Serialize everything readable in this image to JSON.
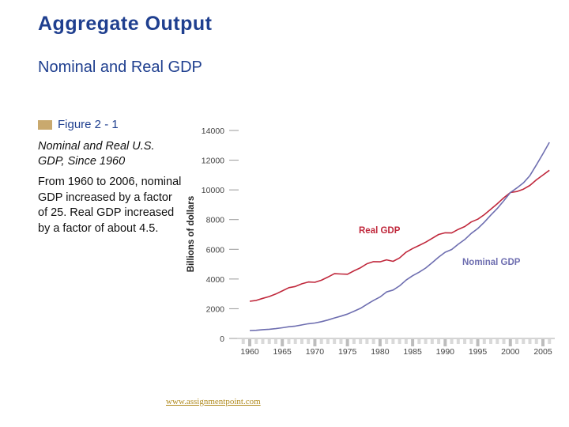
{
  "slide": {
    "title": "Aggregate Output",
    "subtitle": "Nominal and Real GDP",
    "figure_label": "Figure 2 - 1",
    "figure_caption": "Nominal and Real U.S. GDP, Since 1960",
    "figure_description": "From 1960 to 2006, nominal GDP increased by a factor of 25. Real GDP increased by a factor of about 4.5.",
    "footer": "www.assignmentpoint.com"
  },
  "colors": {
    "title": "#1f3f8f",
    "real": "#c0283c",
    "nominal": "#6e6eb0",
    "swatch": "#c9a96e"
  },
  "chart_data": {
    "type": "line",
    "title": "",
    "xlabel": "",
    "ylabel": "Billions of dollars",
    "xlim": [
      1959,
      2007
    ],
    "ylim": [
      0,
      14000
    ],
    "x_ticks": [
      1960,
      1965,
      1970,
      1975,
      1980,
      1985,
      1990,
      1995,
      2000,
      2005
    ],
    "y_ticks": [
      0,
      2000,
      4000,
      6000,
      8000,
      10000,
      12000,
      14000
    ],
    "grid": false,
    "legend": "inline labels",
    "series": [
      {
        "name": "Real GDP",
        "x": [
          1960,
          1961,
          1962,
          1963,
          1964,
          1965,
          1966,
          1967,
          1968,
          1969,
          1970,
          1971,
          1972,
          1973,
          1974,
          1975,
          1976,
          1977,
          1978,
          1979,
          1980,
          1981,
          1982,
          1983,
          1984,
          1985,
          1986,
          1987,
          1988,
          1989,
          1990,
          1991,
          1992,
          1993,
          1994,
          1995,
          1996,
          1997,
          1998,
          1999,
          2000,
          2001,
          2002,
          2003,
          2004,
          2005,
          2006
        ],
        "y": [
          2500,
          2560,
          2700,
          2820,
          2990,
          3200,
          3420,
          3500,
          3680,
          3800,
          3780,
          3920,
          4130,
          4360,
          4340,
          4320,
          4550,
          4760,
          5030,
          5170,
          5160,
          5290,
          5190,
          5420,
          5810,
          6050,
          6260,
          6480,
          6740,
          7000,
          7110,
          7100,
          7340,
          7530,
          7840,
          8030,
          8330,
          8700,
          9070,
          9470,
          9820,
          9890,
          10050,
          10300,
          10680,
          11000,
          11320
        ]
      },
      {
        "name": "Nominal GDP",
        "x": [
          1960,
          1961,
          1962,
          1963,
          1964,
          1965,
          1966,
          1967,
          1968,
          1969,
          1970,
          1971,
          1972,
          1973,
          1974,
          1975,
          1976,
          1977,
          1978,
          1979,
          1980,
          1981,
          1982,
          1983,
          1984,
          1985,
          1986,
          1987,
          1988,
          1989,
          1990,
          1991,
          1992,
          1993,
          1994,
          1995,
          1996,
          1997,
          1998,
          1999,
          2000,
          2001,
          2002,
          2003,
          2004,
          2005,
          2006
        ],
        "y": [
          530,
          550,
          590,
          620,
          660,
          720,
          790,
          830,
          910,
          990,
          1040,
          1130,
          1240,
          1380,
          1500,
          1640,
          1830,
          2030,
          2300,
          2560,
          2790,
          3130,
          3260,
          3540,
          3930,
          4220,
          4460,
          4740,
          5100,
          5480,
          5800,
          5990,
          6340,
          6660,
          7070,
          7400,
          7820,
          8300,
          8750,
          9270,
          9820,
          10130,
          10470,
          10960,
          11690,
          12430,
          13200
        ]
      }
    ],
    "annotations": [
      "Real GDP",
      "Nominal GDP"
    ]
  }
}
